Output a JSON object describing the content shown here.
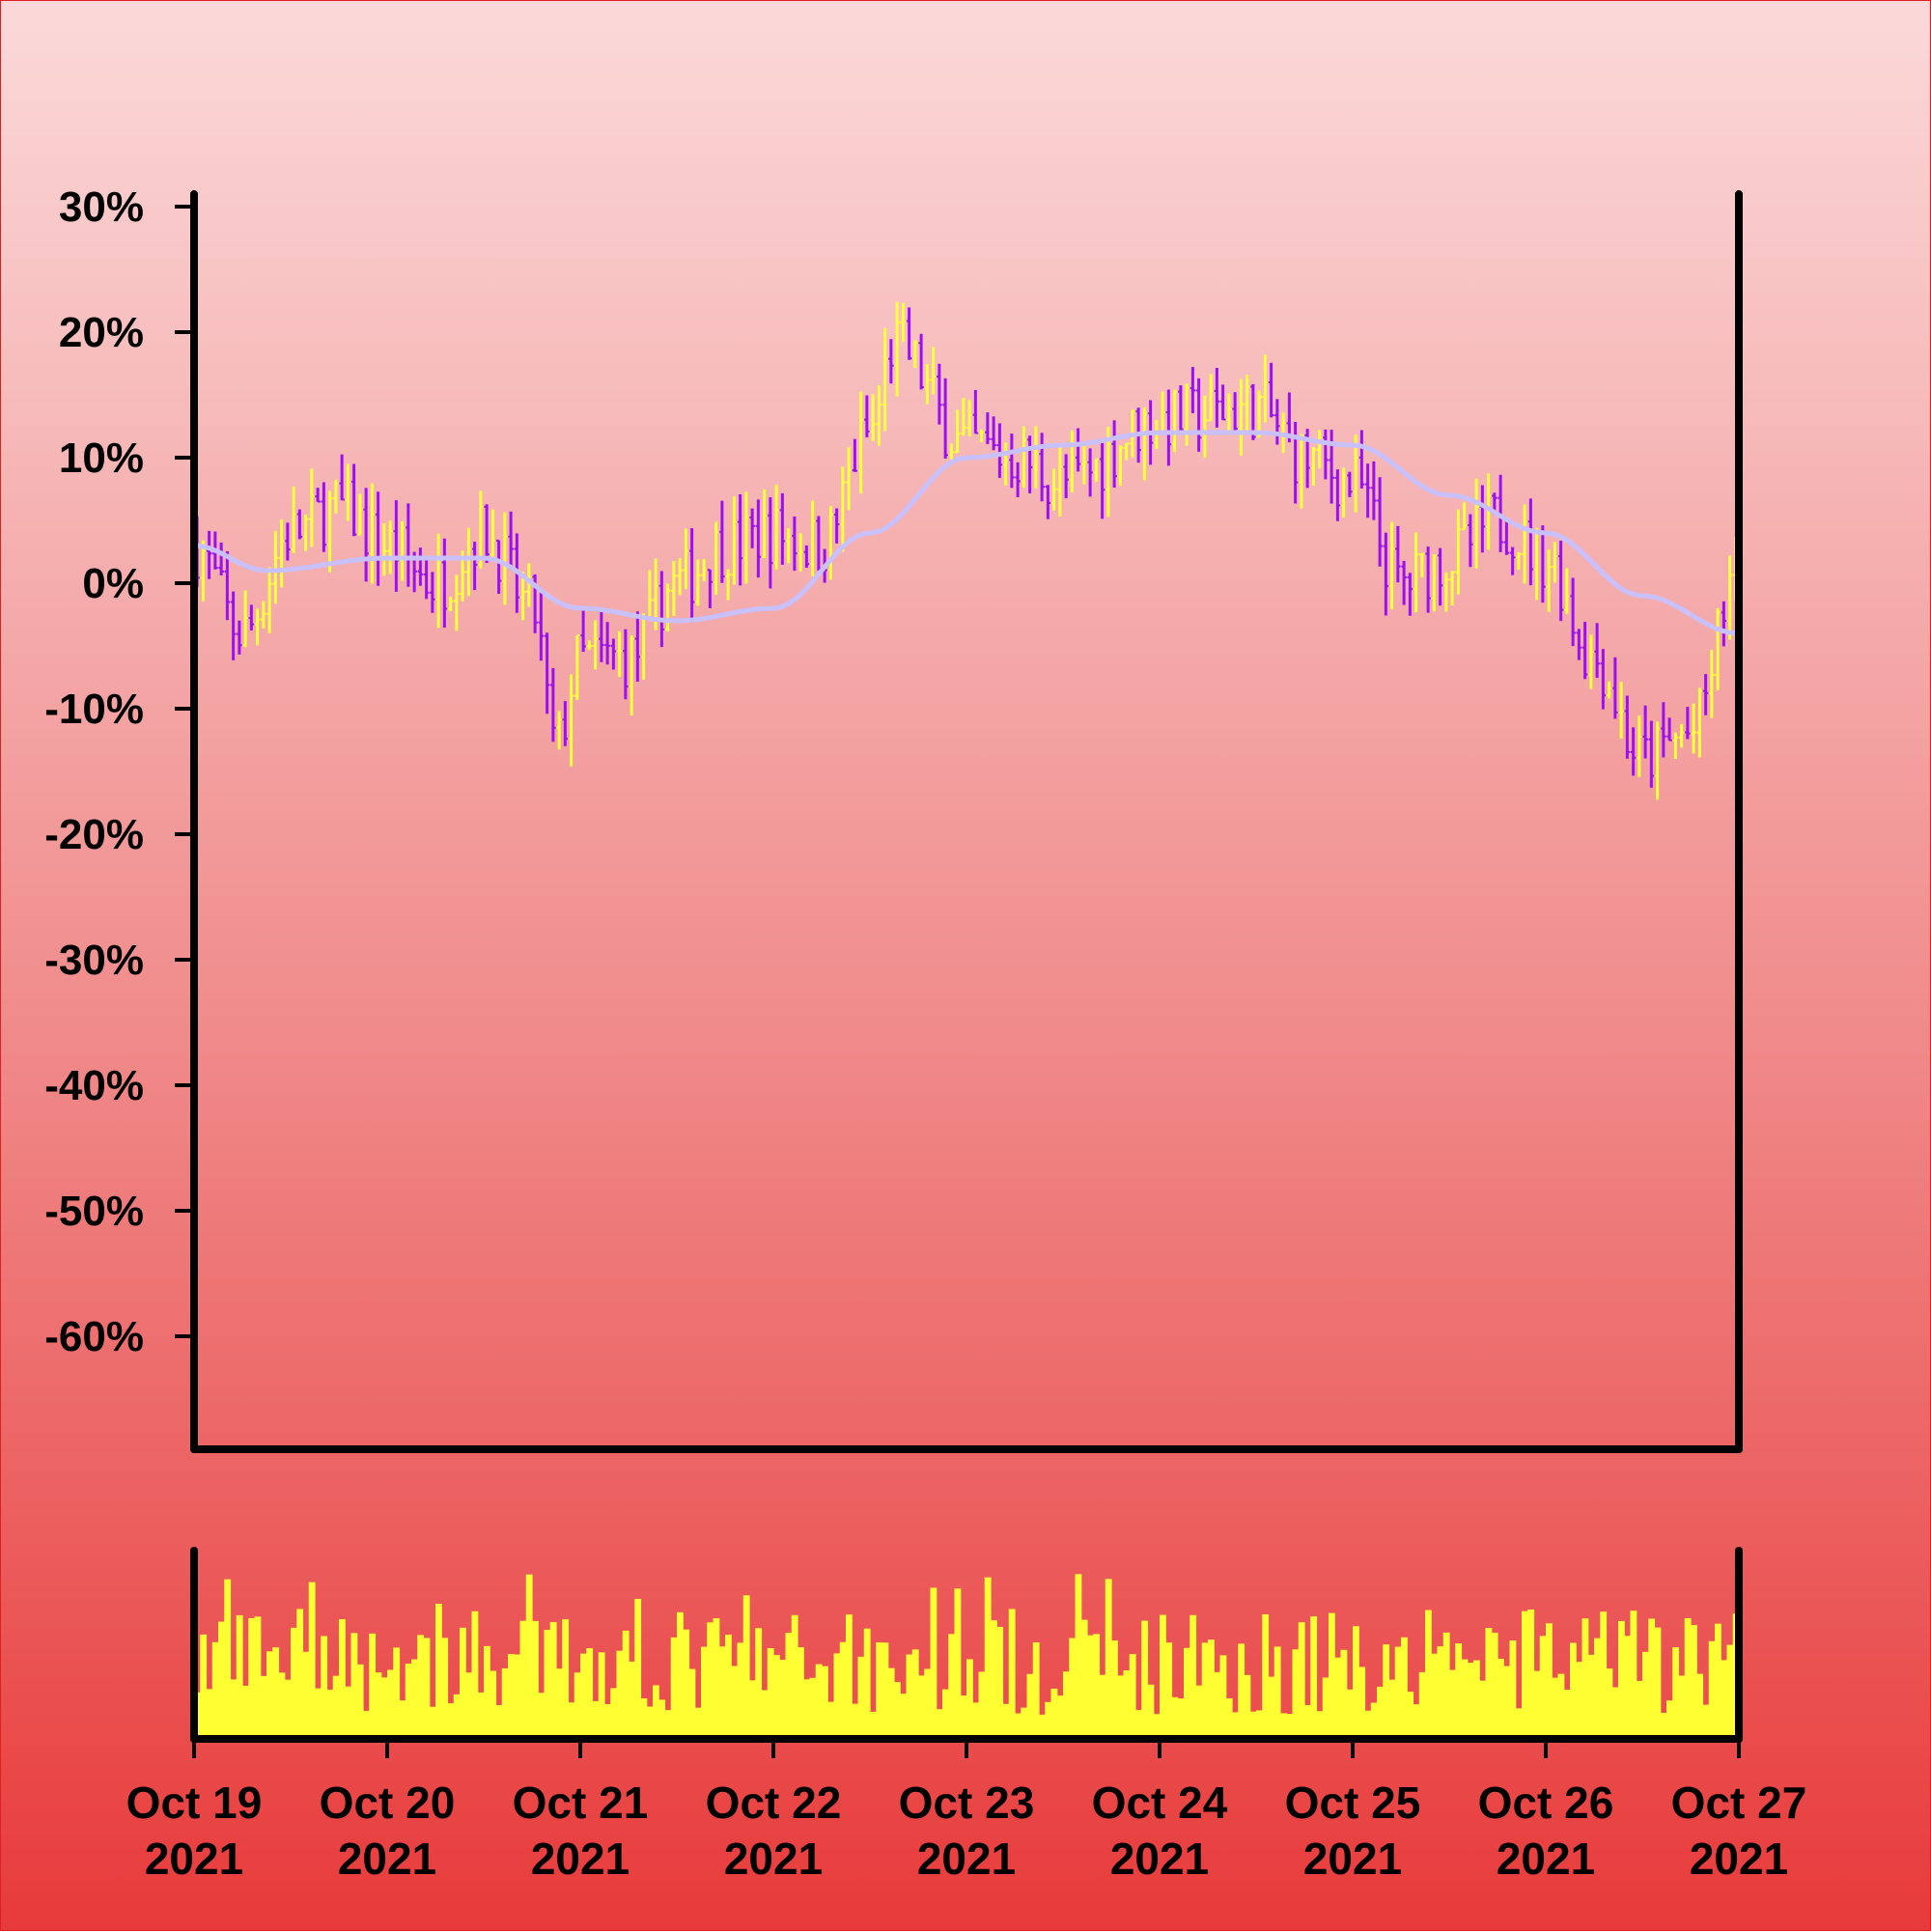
{
  "chart_data": {
    "type": "ohlc",
    "panels": [
      "price",
      "volume"
    ],
    "y_axis": {
      "unit": "%",
      "ticks": [
        30,
        20,
        10,
        0,
        -10,
        -20,
        -30,
        -40,
        -50,
        -60
      ],
      "tick_labels": [
        "30%",
        "20%",
        "10%",
        "0%",
        "-10%",
        "-20%",
        "-30%",
        "-40%",
        "-50%",
        "-60%"
      ],
      "ylim": [
        -69,
        31
      ]
    },
    "x_axis": {
      "range": [
        "2021-10-19",
        "2021-10-27"
      ],
      "ticks": [
        {
          "date": "2021-10-19",
          "line1": "Oct 19",
          "line2": "2021"
        },
        {
          "date": "2021-10-20",
          "line1": "Oct 20",
          "line2": "2021"
        },
        {
          "date": "2021-10-21",
          "line1": "Oct 21",
          "line2": "2021"
        },
        {
          "date": "2021-10-22",
          "line1": "Oct 22",
          "line2": "2021"
        },
        {
          "date": "2021-10-23",
          "line1": "Oct 23",
          "line2": "2021"
        },
        {
          "date": "2021-10-24",
          "line1": "Oct 24",
          "line2": "2021"
        },
        {
          "date": "2021-10-25",
          "line1": "Oct 25",
          "line2": "2021"
        },
        {
          "date": "2021-10-26",
          "line1": "Oct 26",
          "line2": "2021"
        },
        {
          "date": "2021-10-27",
          "line1": "Oct 27",
          "line2": "2021"
        }
      ]
    },
    "colors": {
      "up": "#ffff40",
      "down": "#9a10f0",
      "moving_average": "#c8c0ff",
      "volume": "#ffff33",
      "axis": "#000000"
    },
    "price_path_anchors": [
      {
        "date": "2021-10-19 00:00",
        "close": 3
      },
      {
        "date": "2021-10-19 06:00",
        "close": -4
      },
      {
        "date": "2021-10-19 12:00",
        "close": 4
      },
      {
        "date": "2021-10-19 18:00",
        "close": 6
      },
      {
        "date": "2021-10-20 00:00",
        "close": 3
      },
      {
        "date": "2021-10-20 06:00",
        "close": 0
      },
      {
        "date": "2021-10-20 12:00",
        "close": 4
      },
      {
        "date": "2021-10-20 18:00",
        "close": -2
      },
      {
        "date": "2021-10-21 00:00",
        "close": -6
      },
      {
        "date": "2021-10-20 21:00",
        "close": -13
      },
      {
        "date": "2021-10-21 06:00",
        "close": -6
      },
      {
        "date": "2021-10-21 12:00",
        "close": 0
      },
      {
        "date": "2021-10-21 18:00",
        "close": 3
      },
      {
        "date": "2021-10-22 00:00",
        "close": 4
      },
      {
        "date": "2021-10-22 06:00",
        "close": 3
      },
      {
        "date": "2021-10-22 12:00",
        "close": 12
      },
      {
        "date": "2021-10-22 15:00",
        "close": 19
      },
      {
        "date": "2021-10-23 00:00",
        "close": 11
      },
      {
        "date": "2021-10-23 06:00",
        "close": 10
      },
      {
        "date": "2021-10-23 12:00",
        "close": 8
      },
      {
        "date": "2021-10-24 00:00",
        "close": 13
      },
      {
        "date": "2021-10-24 12:00",
        "close": 14
      },
      {
        "date": "2021-10-24 18:00",
        "close": 10
      },
      {
        "date": "2021-10-25 00:00",
        "close": 8
      },
      {
        "date": "2021-10-25 06:00",
        "close": 0
      },
      {
        "date": "2021-10-25 12:00",
        "close": 2
      },
      {
        "date": "2021-10-25 18:00",
        "close": 5
      },
      {
        "date": "2021-10-26 00:00",
        "close": 2
      },
      {
        "date": "2021-10-26 06:00",
        "close": -6
      },
      {
        "date": "2021-10-26 12:00",
        "close": -14
      },
      {
        "date": "2021-10-26 18:00",
        "close": -12
      },
      {
        "date": "2021-10-27 00:00",
        "close": 1
      }
    ],
    "moving_average_anchors": [
      {
        "date": "2021-10-19 00:00",
        "value": 3
      },
      {
        "date": "2021-10-19 09:00",
        "value": 1
      },
      {
        "date": "2021-10-20 00:00",
        "value": 2
      },
      {
        "date": "2021-10-20 12:00",
        "value": 2
      },
      {
        "date": "2021-10-21 00:00",
        "value": -2
      },
      {
        "date": "2021-10-21 12:00",
        "value": -3
      },
      {
        "date": "2021-10-22 00:00",
        "value": -2
      },
      {
        "date": "2021-10-22 12:00",
        "value": 4
      },
      {
        "date": "2021-10-23 00:00",
        "value": 10
      },
      {
        "date": "2021-10-23 12:00",
        "value": 11
      },
      {
        "date": "2021-10-24 00:00",
        "value": 12
      },
      {
        "date": "2021-10-24 12:00",
        "value": 12
      },
      {
        "date": "2021-10-25 00:00",
        "value": 11
      },
      {
        "date": "2021-10-25 12:00",
        "value": 7
      },
      {
        "date": "2021-10-26 00:00",
        "value": 4
      },
      {
        "date": "2021-10-26 12:00",
        "value": -1
      },
      {
        "date": "2021-10-27 00:00",
        "value": -4
      }
    ],
    "bars_per_day": 32
  }
}
